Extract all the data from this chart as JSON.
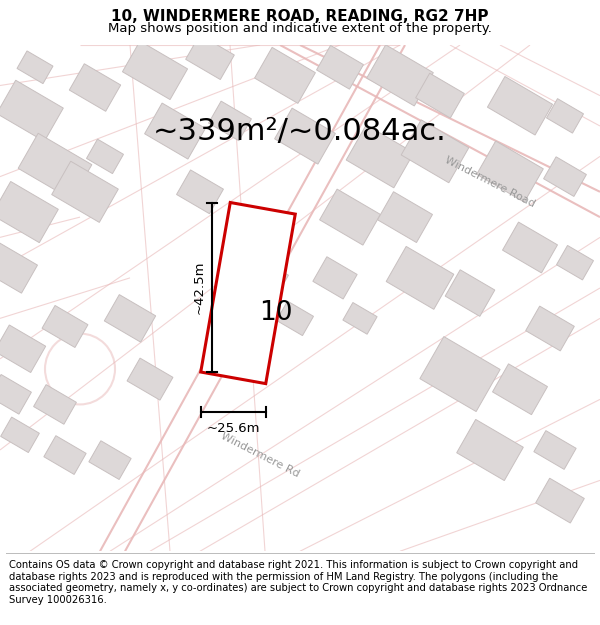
{
  "title": "10, WINDERMERE ROAD, READING, RG2 7HP",
  "subtitle": "Map shows position and indicative extent of the property.",
  "area_label": "~339m²/~0.084ac.",
  "plot_number": "10",
  "dim_width": "~25.6m",
  "dim_height": "~42.5m",
  "road_label1": "Windermere Road",
  "road_label2": "Windermere Rd",
  "bg_color": "#f7f3f3",
  "road_color": "#e8b8b8",
  "building_fill": "#ddd8d8",
  "building_edge": "#c8c0c0",
  "plot_fill": "#ffffff",
  "plot_edge": "#cc0000",
  "footer_text": "Contains OS data © Crown copyright and database right 2021. This information is subject to Crown copyright and database rights 2023 and is reproduced with the permission of HM Land Registry. The polygons (including the associated geometry, namely x, y co-ordinates) are subject to Crown copyright and database rights 2023 Ordnance Survey 100026316.",
  "title_fontsize": 11,
  "subtitle_fontsize": 9.5,
  "area_fontsize": 22,
  "footer_fontsize": 7.2,
  "map_xlim": [
    0,
    600
  ],
  "map_ylim": [
    0,
    500
  ]
}
